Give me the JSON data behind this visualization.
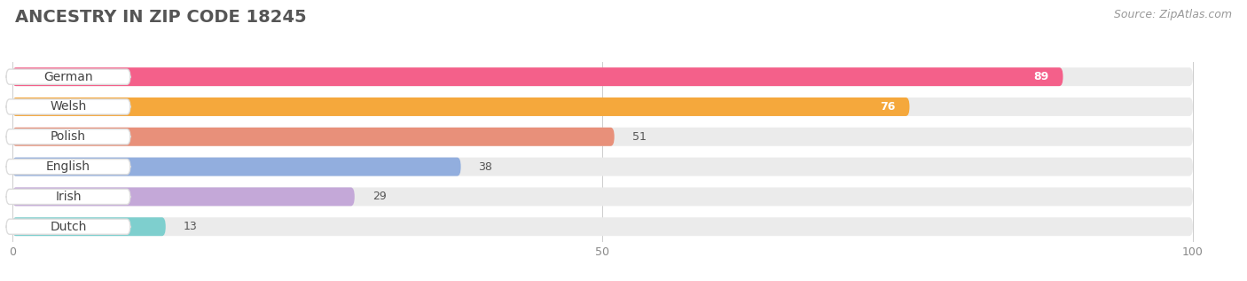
{
  "title": "ANCESTRY IN ZIP CODE 18245",
  "source": "Source: ZipAtlas.com",
  "categories": [
    "German",
    "Welsh",
    "Polish",
    "English",
    "Irish",
    "Dutch"
  ],
  "values": [
    89,
    76,
    51,
    38,
    29,
    13
  ],
  "bar_colors": [
    "#F4608A",
    "#F5A83C",
    "#E8907A",
    "#92AEDE",
    "#C4A8D8",
    "#7ECFCE"
  ],
  "xlim": [
    0,
    100
  ],
  "xlabel_ticks": [
    0,
    50,
    100
  ],
  "title_fontsize": 14,
  "source_fontsize": 9,
  "value_fontsize": 9,
  "label_fontsize": 10,
  "figsize": [
    14.06,
    3.17
  ],
  "dpi": 100
}
